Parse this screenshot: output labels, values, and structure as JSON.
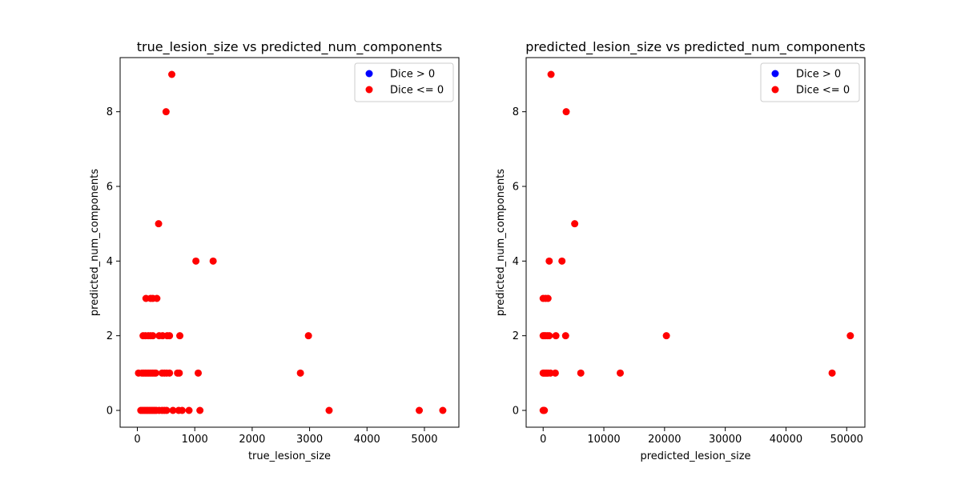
{
  "chart_data": [
    {
      "type": "scatter",
      "title": "true_lesion_size vs predicted_num_components",
      "xlabel": "true_lesion_size",
      "ylabel": "predicted_num_components",
      "xlim": [
        -300,
        5600
      ],
      "ylim": [
        -0.45,
        9.45
      ],
      "xticks": [
        0,
        1000,
        2000,
        3000,
        4000,
        5000
      ],
      "yticks": [
        0,
        2,
        4,
        6,
        8
      ],
      "grid": false,
      "legend": "top-right",
      "series": [
        {
          "name": "Dice > 0",
          "color": "#0000ff",
          "points": []
        },
        {
          "name": "Dice <= 0",
          "color": "#ff0000",
          "points": [
            [
              600,
              9
            ],
            [
              500,
              8
            ],
            [
              370,
              5
            ],
            [
              1020,
              4
            ],
            [
              1320,
              4
            ],
            [
              150,
              3
            ],
            [
              230,
              3
            ],
            [
              270,
              3
            ],
            [
              340,
              3
            ],
            [
              100,
              2
            ],
            [
              140,
              2
            ],
            [
              190,
              2
            ],
            [
              230,
              2
            ],
            [
              270,
              2
            ],
            [
              380,
              2
            ],
            [
              440,
              2
            ],
            [
              520,
              2
            ],
            [
              560,
              2
            ],
            [
              740,
              2
            ],
            [
              2980,
              2
            ],
            [
              20,
              1
            ],
            [
              80,
              1
            ],
            [
              110,
              1
            ],
            [
              140,
              1
            ],
            [
              170,
              1
            ],
            [
              200,
              1
            ],
            [
              230,
              1
            ],
            [
              260,
              1
            ],
            [
              290,
              1
            ],
            [
              320,
              1
            ],
            [
              430,
              1
            ],
            [
              470,
              1
            ],
            [
              510,
              1
            ],
            [
              560,
              1
            ],
            [
              700,
              1
            ],
            [
              730,
              1
            ],
            [
              1060,
              1
            ],
            [
              2840,
              1
            ],
            [
              60,
              0
            ],
            [
              90,
              0
            ],
            [
              120,
              0
            ],
            [
              150,
              0
            ],
            [
              180,
              0
            ],
            [
              210,
              0
            ],
            [
              240,
              0
            ],
            [
              270,
              0
            ],
            [
              300,
              0
            ],
            [
              330,
              0
            ],
            [
              380,
              0
            ],
            [
              430,
              0
            ],
            [
              470,
              0
            ],
            [
              510,
              0
            ],
            [
              620,
              0
            ],
            [
              720,
              0
            ],
            [
              780,
              0
            ],
            [
              900,
              0
            ],
            [
              1090,
              0
            ],
            [
              3340,
              0
            ],
            [
              4910,
              0
            ],
            [
              5320,
              0
            ]
          ]
        }
      ]
    },
    {
      "type": "scatter",
      "title": "predicted_lesion_size vs predicted_num_components",
      "xlabel": "predicted_lesion_size",
      "ylabel": "predicted_num_components",
      "xlim": [
        -2800,
        53000
      ],
      "ylim": [
        -0.45,
        9.45
      ],
      "xticks": [
        0,
        10000,
        20000,
        30000,
        40000,
        50000
      ],
      "yticks": [
        0,
        2,
        4,
        6,
        8
      ],
      "grid": false,
      "legend": "top-right",
      "series": [
        {
          "name": "Dice > 0",
          "color": "#0000ff",
          "points": []
        },
        {
          "name": "Dice <= 0",
          "color": "#ff0000",
          "points": [
            [
              1300,
              9
            ],
            [
              3800,
              8
            ],
            [
              5200,
              5
            ],
            [
              1000,
              4
            ],
            [
              3100,
              4
            ],
            [
              0,
              3
            ],
            [
              400,
              3
            ],
            [
              800,
              3
            ],
            [
              0,
              2
            ],
            [
              200,
              2
            ],
            [
              400,
              2
            ],
            [
              700,
              2
            ],
            [
              1000,
              2
            ],
            [
              2100,
              2
            ],
            [
              3700,
              2
            ],
            [
              20300,
              2
            ],
            [
              50600,
              2
            ],
            [
              0,
              1
            ],
            [
              200,
              1
            ],
            [
              400,
              1
            ],
            [
              600,
              1
            ],
            [
              800,
              1
            ],
            [
              1200,
              1
            ],
            [
              2000,
              1
            ],
            [
              6200,
              1
            ],
            [
              12700,
              1
            ],
            [
              47600,
              1
            ],
            [
              0,
              0
            ],
            [
              100,
              0
            ],
            [
              200,
              0
            ]
          ]
        }
      ]
    }
  ]
}
